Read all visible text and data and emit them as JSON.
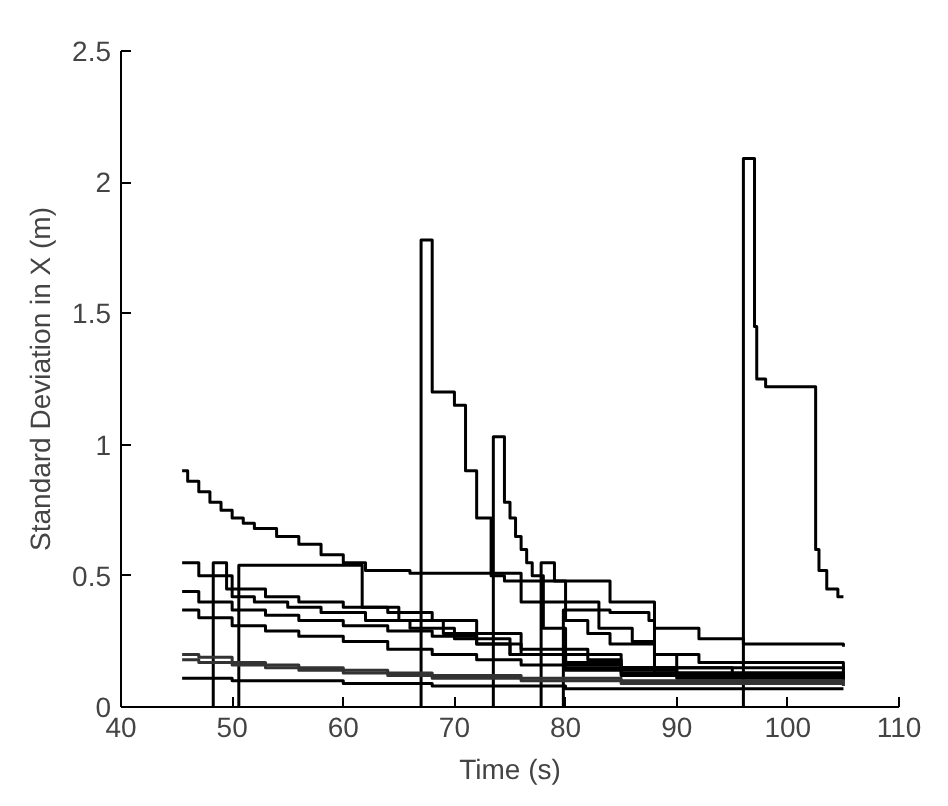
{
  "chart_data": {
    "type": "step",
    "xlabel": "Time (s)",
    "ylabel": "Standard Deviation in X (m)",
    "xlim": [
      40,
      110
    ],
    "ylim": [
      0,
      2.5
    ],
    "xticks": [
      40,
      50,
      60,
      70,
      80,
      90,
      100,
      110
    ],
    "yticks": [
      0,
      0.5,
      1,
      1.5,
      2,
      2.5
    ],
    "grid": false,
    "marker": "none",
    "line_style": "solid",
    "x": [
      45.5,
      47,
      50,
      53,
      56,
      60,
      64,
      68,
      72,
      76,
      80,
      85,
      90,
      105
    ],
    "series": [
      {
        "color": "#000000",
        "x": [
          45.5,
          46,
          47,
          48,
          49,
          50,
          51,
          52,
          54,
          56,
          58,
          60,
          62,
          66,
          73,
          76,
          80,
          84,
          88,
          92,
          96,
          105
        ],
        "values": [
          0.9,
          0.86,
          0.82,
          0.78,
          0.75,
          0.72,
          0.7,
          0.68,
          0.65,
          0.62,
          0.58,
          0.55,
          0.52,
          0.51,
          0.51,
          0.48,
          0.48,
          0.4,
          0.3,
          0.26,
          0.24,
          0.23
        ]
      },
      {
        "color": "#000000",
        "x": [
          67,
          67,
          68,
          70,
          71,
          72,
          73.3,
          74.5,
          76,
          78,
          80,
          82,
          85,
          90,
          95,
          105
        ],
        "values": [
          0,
          1.78,
          1.2,
          1.15,
          0.9,
          0.72,
          0.5,
          0.48,
          0.4,
          0.3,
          0.22,
          0.18,
          0.15,
          0.13,
          0.12,
          0.11
        ]
      },
      {
        "color": "#000000",
        "x": [
          73.5,
          73.5,
          74.5,
          75,
          75.5,
          76,
          76.5,
          77,
          78,
          80,
          82,
          84,
          88,
          92,
          105
        ],
        "values": [
          0,
          1.03,
          0.78,
          0.72,
          0.65,
          0.6,
          0.55,
          0.5,
          0.4,
          0.33,
          0.28,
          0.24,
          0.2,
          0.17,
          0.14
        ]
      },
      {
        "color": "#000000",
        "x": [
          96,
          96,
          97,
          97.2,
          98,
          102.5,
          102.8,
          103.5,
          104.5,
          105
        ],
        "values": [
          0,
          2.09,
          1.45,
          1.25,
          1.22,
          0.6,
          0.52,
          0.45,
          0.42,
          0.42
        ]
      },
      {
        "color": "#000000",
        "x": [
          48.3,
          48.3,
          49.5,
          50,
          52,
          55,
          58,
          62,
          66,
          70,
          75,
          80,
          90,
          105
        ],
        "values": [
          0,
          0.55,
          0.45,
          0.42,
          0.4,
          0.38,
          0.36,
          0.33,
          0.3,
          0.26,
          0.2,
          0.15,
          0.12,
          0.11
        ]
      },
      {
        "color": "#000000",
        "x": [
          50.6,
          50.6,
          61.7,
          65,
          69,
          72,
          75,
          85,
          105
        ],
        "values": [
          0,
          0.54,
          0.38,
          0.33,
          0.28,
          0.24,
          0.2,
          0.15,
          0.13
        ]
      },
      {
        "color": "#000000",
        "x": [
          77.8,
          77.8,
          79,
          80,
          83,
          86,
          88,
          105
        ],
        "values": [
          0,
          0.55,
          0.48,
          0.4,
          0.3,
          0.25,
          0.13,
          0.12
        ]
      },
      {
        "color": "#000000",
        "x": [
          79.8,
          79.8,
          84,
          87.5,
          88,
          90,
          95,
          105
        ],
        "values": [
          0,
          0.37,
          0.36,
          0.33,
          0.2,
          0.15,
          0.13,
          0.12
        ]
      },
      {
        "color": "#000000",
        "values": [
          0.55,
          0.5,
          0.45,
          0.42,
          0.4,
          0.38,
          0.36,
          0.33,
          0.28,
          0.22,
          0.17,
          0.14,
          0.12,
          0.11
        ]
      },
      {
        "color": "#000000",
        "values": [
          0.44,
          0.4,
          0.37,
          0.35,
          0.33,
          0.31,
          0.29,
          0.27,
          0.24,
          0.2,
          0.16,
          0.13,
          0.12,
          0.11
        ]
      },
      {
        "color": "#000000",
        "values": [
          0.37,
          0.34,
          0.31,
          0.29,
          0.27,
          0.25,
          0.22,
          0.2,
          0.18,
          0.16,
          0.14,
          0.12,
          0.11,
          0.1
        ]
      },
      {
        "color": "#333333",
        "values": [
          0.2,
          0.19,
          0.17,
          0.16,
          0.15,
          0.14,
          0.13,
          0.12,
          0.12,
          0.11,
          0.11,
          0.1,
          0.1,
          0.09
        ]
      },
      {
        "color": "#333333",
        "values": [
          0.18,
          0.17,
          0.16,
          0.15,
          0.14,
          0.13,
          0.12,
          0.11,
          0.11,
          0.1,
          0.1,
          0.09,
          0.09,
          0.08
        ]
      },
      {
        "color": "#000000",
        "values": [
          0.11,
          0.11,
          0.1,
          0.1,
          0.1,
          0.09,
          0.09,
          0.08,
          0.08,
          0.08,
          0.07,
          0.07,
          0.07,
          0.07
        ]
      }
    ]
  }
}
